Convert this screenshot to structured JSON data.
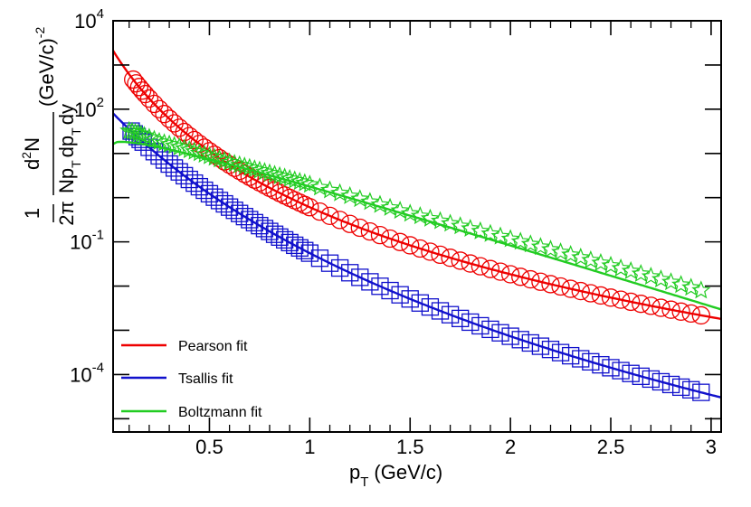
{
  "chart_data": {
    "type": "scatter",
    "xlabel": {
      "main": "p",
      "sub": "T",
      "unit": "(GeV/c)"
    },
    "ylabel": {
      "one": "1",
      "twopi": "2π",
      "num": {
        "d": "d",
        "sup": "2",
        "n": "N"
      },
      "den": {
        "np": "Np",
        "t1": "T",
        "dp": "dp",
        "t2": "T",
        "dy": "dy"
      },
      "unit": "(GeV/c)",
      "unit_exp": "-2"
    },
    "x_range": [
      0.02,
      3.05
    ],
    "y_log_range": [
      -5.3,
      4
    ],
    "x_ticks": [
      {
        "value": 0.5,
        "label": "0.5"
      },
      {
        "value": 1,
        "label": "1"
      },
      {
        "value": 1.5,
        "label": "1.5"
      },
      {
        "value": 2,
        "label": "2"
      },
      {
        "value": 2.5,
        "label": "2.5"
      },
      {
        "value": 3,
        "label": "3"
      }
    ],
    "y_ticks": [
      {
        "exp": 4,
        "base": "10",
        "sup": "4"
      },
      {
        "exp": 2,
        "base": "10",
        "sup": "2"
      },
      {
        "exp": -1,
        "base": "10",
        "sup": "-1"
      },
      {
        "exp": -4,
        "base": "10",
        "sup": "-4"
      }
    ],
    "series": [
      {
        "name": "Pearson fit",
        "kind": "pearson",
        "color": "#ee0000",
        "marker": "circle",
        "points_x": [
          0.12,
          0.135,
          0.15,
          0.165,
          0.18,
          0.2,
          0.225,
          0.25,
          0.275,
          0.3,
          0.325,
          0.35,
          0.375,
          0.4,
          0.425,
          0.45,
          0.475,
          0.5,
          0.525,
          0.55,
          0.575,
          0.6,
          0.625,
          0.65,
          0.675,
          0.7,
          0.725,
          0.75,
          0.775,
          0.8,
          0.825,
          0.85,
          0.875,
          0.9,
          0.925,
          0.95,
          0.975,
          1.0,
          1.05,
          1.1,
          1.15,
          1.2,
          1.25,
          1.3,
          1.35,
          1.4,
          1.45,
          1.5,
          1.55,
          1.6,
          1.65,
          1.7,
          1.75,
          1.8,
          1.85,
          1.9,
          1.95,
          2.0,
          2.05,
          2.1,
          2.15,
          2.2,
          2.25,
          2.3,
          2.35,
          2.4,
          2.45,
          2.5,
          2.55,
          2.6,
          2.65,
          2.7,
          2.75,
          2.8,
          2.85,
          2.9,
          2.95
        ]
      },
      {
        "name": "Tsallis fit",
        "kind": "tsallis",
        "color": "#1111cc",
        "marker": "square",
        "points_x": [
          0.11,
          0.125,
          0.14,
          0.155,
          0.17,
          0.2,
          0.225,
          0.25,
          0.275,
          0.3,
          0.325,
          0.35,
          0.375,
          0.4,
          0.425,
          0.45,
          0.475,
          0.5,
          0.525,
          0.55,
          0.575,
          0.6,
          0.625,
          0.65,
          0.675,
          0.7,
          0.725,
          0.75,
          0.775,
          0.8,
          0.825,
          0.85,
          0.875,
          0.9,
          0.925,
          0.95,
          0.975,
          1.0,
          1.05,
          1.1,
          1.15,
          1.2,
          1.25,
          1.3,
          1.35,
          1.4,
          1.45,
          1.5,
          1.55,
          1.6,
          1.65,
          1.7,
          1.75,
          1.8,
          1.85,
          1.9,
          1.95,
          2.0,
          2.05,
          2.1,
          2.15,
          2.2,
          2.25,
          2.3,
          2.35,
          2.4,
          2.45,
          2.5,
          2.55,
          2.6,
          2.65,
          2.7,
          2.75,
          2.8,
          2.85,
          2.9,
          2.95
        ]
      },
      {
        "name": "Boltzmann fit",
        "kind": "boltzmann",
        "color": "#22cc22",
        "marker": "star",
        "points_x": [
          0.1,
          0.115,
          0.13,
          0.145,
          0.16,
          0.175,
          0.2,
          0.225,
          0.25,
          0.275,
          0.3,
          0.325,
          0.35,
          0.375,
          0.4,
          0.425,
          0.45,
          0.475,
          0.5,
          0.525,
          0.55,
          0.575,
          0.6,
          0.625,
          0.65,
          0.675,
          0.7,
          0.725,
          0.75,
          0.775,
          0.8,
          0.825,
          0.85,
          0.875,
          0.9,
          0.925,
          0.95,
          0.975,
          1.0,
          1.05,
          1.1,
          1.15,
          1.2,
          1.25,
          1.3,
          1.35,
          1.4,
          1.45,
          1.5,
          1.55,
          1.6,
          1.65,
          1.7,
          1.75,
          1.8,
          1.85,
          1.9,
          1.95,
          2.0,
          2.05,
          2.1,
          2.15,
          2.2,
          2.25,
          2.3,
          2.35,
          2.4,
          2.45,
          2.5,
          2.55,
          2.6,
          2.65,
          2.7,
          2.75,
          2.8,
          2.85,
          2.9,
          2.95
        ]
      }
    ],
    "legend": {
      "placement": "bottom-left"
    }
  }
}
